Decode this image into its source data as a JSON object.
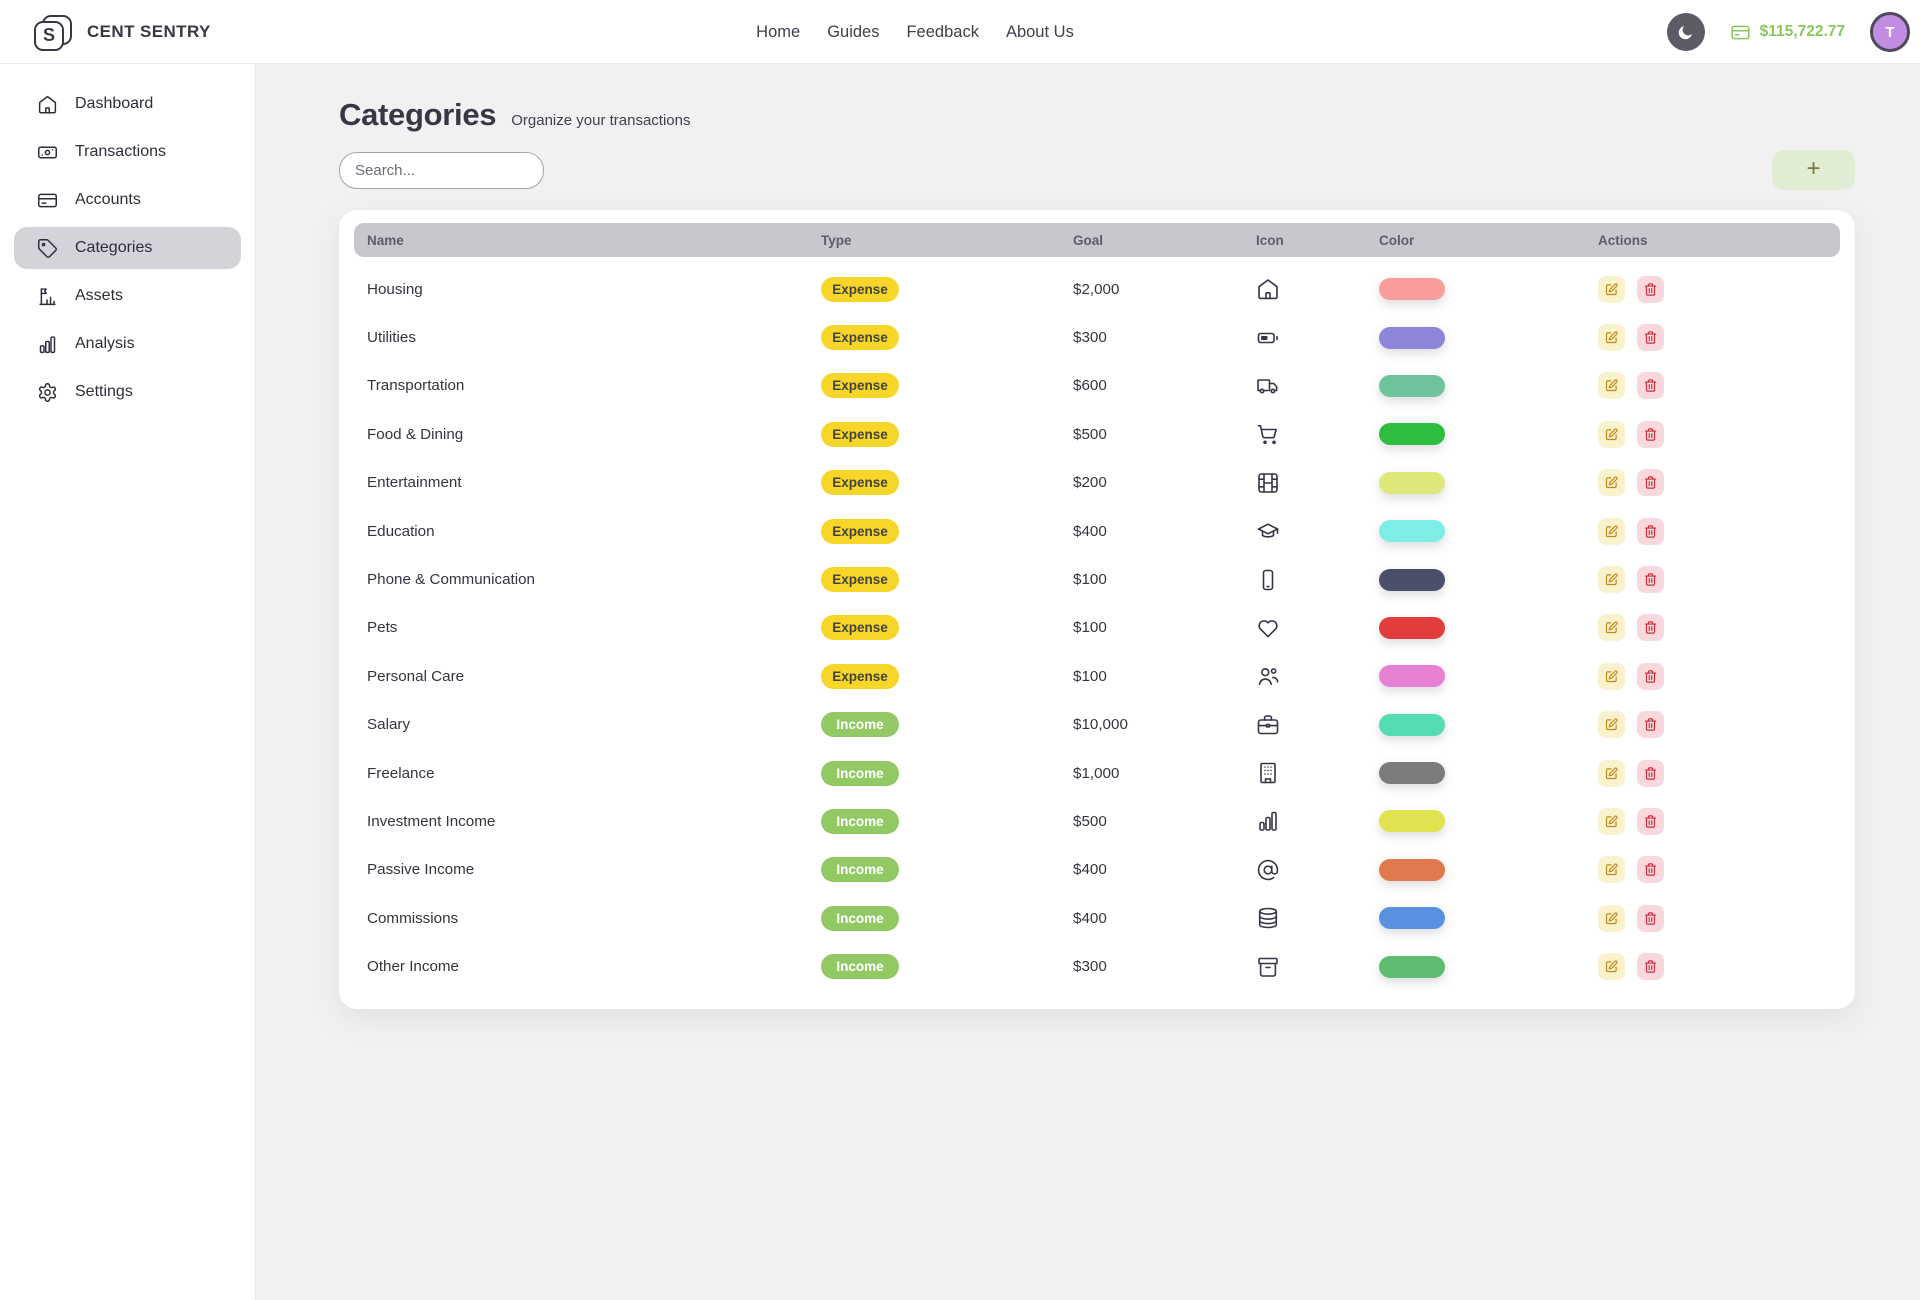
{
  "brand": {
    "name": "CENT SENTRY",
    "logo_letter": "S"
  },
  "nav": {
    "items": [
      "Home",
      "Guides",
      "Feedback",
      "About Us"
    ]
  },
  "topbar_right": {
    "balance": "$115,722.77",
    "avatar_initial": "T",
    "balance_color": "#8ac75f"
  },
  "sidebar": {
    "items": [
      {
        "label": "Dashboard",
        "icon": "house-icon",
        "active": false
      },
      {
        "label": "Transactions",
        "icon": "banknote-icon",
        "active": false
      },
      {
        "label": "Accounts",
        "icon": "credit-card-icon",
        "active": false
      },
      {
        "label": "Categories",
        "icon": "tag-icon",
        "active": true
      },
      {
        "label": "Assets",
        "icon": "flag-chart-icon",
        "active": false
      },
      {
        "label": "Analysis",
        "icon": "bar-chart-icon",
        "active": false
      },
      {
        "label": "Settings",
        "icon": "gear-icon",
        "active": false
      }
    ]
  },
  "page": {
    "title": "Categories",
    "subtitle": "Organize your transactions",
    "search_placeholder": "Search...",
    "add_button_label": "+"
  },
  "table": {
    "columns": [
      "Name",
      "Type",
      "Goal",
      "Icon",
      "Color",
      "Actions"
    ],
    "type_styles": {
      "Expense": {
        "bg": "#f6d628",
        "text": "#45433a"
      },
      "Income": {
        "bg": "#92c964",
        "text": "#ffffff"
      }
    },
    "rows": [
      {
        "name": "Housing",
        "type": "Expense",
        "goal": "$2,000",
        "icon": "house-icon",
        "color": "#f89c9c"
      },
      {
        "name": "Utilities",
        "type": "Expense",
        "goal": "$300",
        "icon": "battery-icon",
        "color": "#8c85d9"
      },
      {
        "name": "Transportation",
        "type": "Expense",
        "goal": "$600",
        "icon": "truck-icon",
        "color": "#6fc49d"
      },
      {
        "name": "Food & Dining",
        "type": "Expense",
        "goal": "$500",
        "icon": "shopping-cart-icon",
        "color": "#2ebd3e"
      },
      {
        "name": "Entertainment",
        "type": "Expense",
        "goal": "$200",
        "icon": "film-icon",
        "color": "#dde878"
      },
      {
        "name": "Education",
        "type": "Expense",
        "goal": "$400",
        "icon": "graduation-cap-icon",
        "color": "#7deee6"
      },
      {
        "name": "Phone & Communication",
        "type": "Expense",
        "goal": "$100",
        "icon": "smartphone-icon",
        "color": "#4b4f6b"
      },
      {
        "name": "Pets",
        "type": "Expense",
        "goal": "$100",
        "icon": "heart-icon",
        "color": "#e23c3c"
      },
      {
        "name": "Personal Care",
        "type": "Expense",
        "goal": "$100",
        "icon": "users-icon",
        "color": "#e680d2"
      },
      {
        "name": "Salary",
        "type": "Income",
        "goal": "$10,000",
        "icon": "briefcase-icon",
        "color": "#55dcb2"
      },
      {
        "name": "Freelance",
        "type": "Income",
        "goal": "$1,000",
        "icon": "building-icon",
        "color": "#7e7b7e"
      },
      {
        "name": "Investment Income",
        "type": "Income",
        "goal": "$500",
        "icon": "bar-chart-icon",
        "color": "#dfe34f"
      },
      {
        "name": "Passive Income",
        "type": "Income",
        "goal": "$400",
        "icon": "at-sign-icon",
        "color": "#e07a4e"
      },
      {
        "name": "Commissions",
        "type": "Income",
        "goal": "$400",
        "icon": "database-icon",
        "color": "#5a90e0"
      },
      {
        "name": "Other Income",
        "type": "Income",
        "goal": "$300",
        "icon": "archive-icon",
        "color": "#5ebd71"
      }
    ]
  }
}
